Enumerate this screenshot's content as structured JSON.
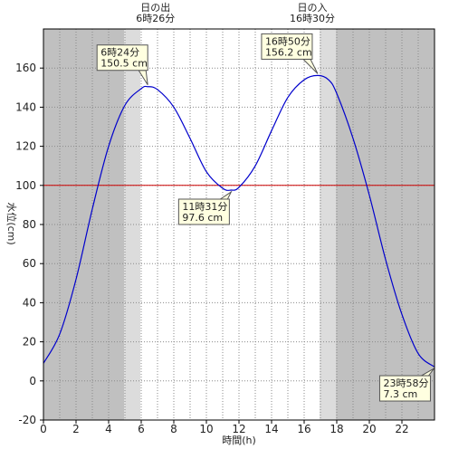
{
  "chart_data": {
    "type": "line",
    "xlabel": "時間(h)",
    "ylabel": "水位(cm)",
    "xlim": [
      0,
      24
    ],
    "ylim": [
      -20,
      180
    ],
    "x_ticks": [
      0,
      2,
      4,
      6,
      8,
      10,
      12,
      14,
      16,
      18,
      20,
      22
    ],
    "y_ticks": [
      -20,
      0,
      20,
      40,
      60,
      80,
      100,
      120,
      140,
      160
    ],
    "grid": true,
    "reference_line": {
      "y": 100,
      "color": "#cc0000"
    },
    "series_color": "#0000cc",
    "series": [
      {
        "x": [
          0,
          1,
          2,
          3,
          4,
          5,
          6,
          6.4,
          7,
          8,
          9,
          10,
          11,
          11.52,
          12,
          13,
          14,
          15,
          16,
          16.83,
          17.5,
          18,
          19,
          20,
          21,
          22,
          23,
          23.97
        ],
        "values": [
          9,
          24,
          52,
          88,
          120,
          141,
          149.5,
          150.5,
          149,
          140,
          124,
          107,
          98.5,
          97.6,
          99,
          110,
          128,
          145,
          154,
          156.2,
          154,
          147,
          124,
          95,
          62,
          34,
          14,
          7.3
        ]
      }
    ],
    "daylight": {
      "night_color": "#c0c0c0",
      "twilight_color": "#dcdcdc",
      "day_color": "#ffffff",
      "morning_twilight": [
        4.95,
        5.95
      ],
      "sunrise": 6.43,
      "sunset": 16.5,
      "evening_twilight": [
        16.95,
        17.95
      ]
    },
    "sun_labels": [
      {
        "title": "日の出",
        "time": "6時26分",
        "x": 6.43
      },
      {
        "title": "日の入",
        "time": "16時30分",
        "x": 16.5
      }
    ],
    "annotations": [
      {
        "time": "6時24分",
        "value": "150.5 cm",
        "x": 6.4,
        "y": 150.5
      },
      {
        "time": "11時31分",
        "value": "97.6 cm",
        "x": 11.52,
        "y": 97.6
      },
      {
        "time": "16時50分",
        "value": "156.2 cm",
        "x": 16.83,
        "y": 156.2
      },
      {
        "time": "23時58分",
        "value": "7.3 cm",
        "x": 23.97,
        "y": 7.3
      }
    ]
  }
}
